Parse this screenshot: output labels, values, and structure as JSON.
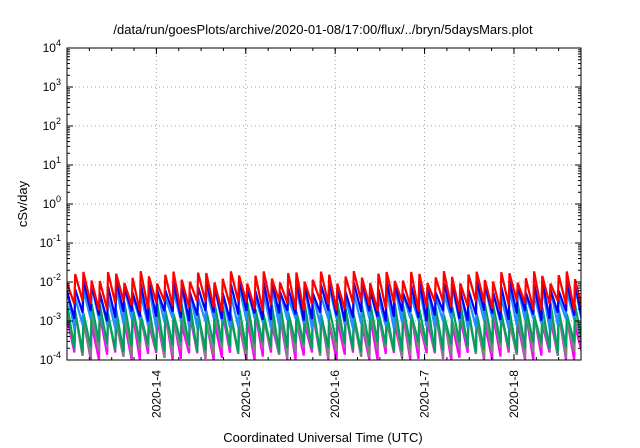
{
  "chart_data": {
    "type": "line",
    "title": "/data/run/goesPlots/archive/2020-01-08/17:00/flux/../bryn/5daysMars.plot",
    "xlabel": "Coordinated Universal Time (UTC)",
    "ylabel": "cSv/day",
    "yscale": "log",
    "ylim": [
      0.0001,
      10000
    ],
    "xlim": [
      "2020-01-03T00:00",
      "2020-01-08T18:00"
    ],
    "grid": true,
    "legend": "none",
    "x_tick_labels": [
      "2020-1-4",
      "2020-1-5",
      "2020-1-6",
      "2020-1-7",
      "2020-1-8"
    ],
    "y_ticks": [
      {
        "base": "10",
        "exp": "-4"
      },
      {
        "base": "10",
        "exp": "-3"
      },
      {
        "base": "10",
        "exp": "-2"
      },
      {
        "base": "10",
        "exp": "-1"
      },
      {
        "base": "10",
        "exp": "0"
      },
      {
        "base": "10",
        "exp": "1"
      },
      {
        "base": "10",
        "exp": "2"
      },
      {
        "base": "10",
        "exp": "3"
      },
      {
        "base": "10",
        "exp": "4"
      }
    ],
    "sawtooth_period_hours": 2.2,
    "series": [
      {
        "color": "#ff00ff",
        "peak": 0.0012,
        "trough": 0.00012
      },
      {
        "color": "#808080",
        "peak": 0.0014,
        "trough": 0.00016
      },
      {
        "color": "#00a060",
        "peak": 0.0022,
        "trough": 0.00022
      },
      {
        "color": "#1e90ff",
        "peak": 0.006,
        "trough": 0.0009
      },
      {
        "color": "#0000ff",
        "peak": 0.008,
        "trough": 0.0014
      },
      {
        "color": "#ff0000",
        "peak": 0.014,
        "trough": 0.0025
      }
    ]
  }
}
